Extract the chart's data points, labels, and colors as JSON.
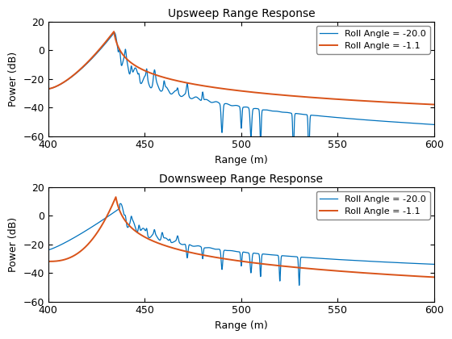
{
  "title1": "Upsweep Range Response",
  "title2": "Downsweep Range Response",
  "xlabel": "Range (m)",
  "ylabel": "Power (dB)",
  "xlim": [
    400,
    600
  ],
  "ylim": [
    -60,
    20
  ],
  "yticks": [
    -60,
    -40,
    -20,
    0,
    20
  ],
  "xticks": [
    400,
    450,
    500,
    550,
    600
  ],
  "color_blue": "#0072BD",
  "color_orange": "#D95319",
  "legend1": "Roll Angle = -20.0",
  "legend2": "Roll Angle = -1.1",
  "figsize": [
    5.6,
    4.2
  ],
  "dpi": 100
}
